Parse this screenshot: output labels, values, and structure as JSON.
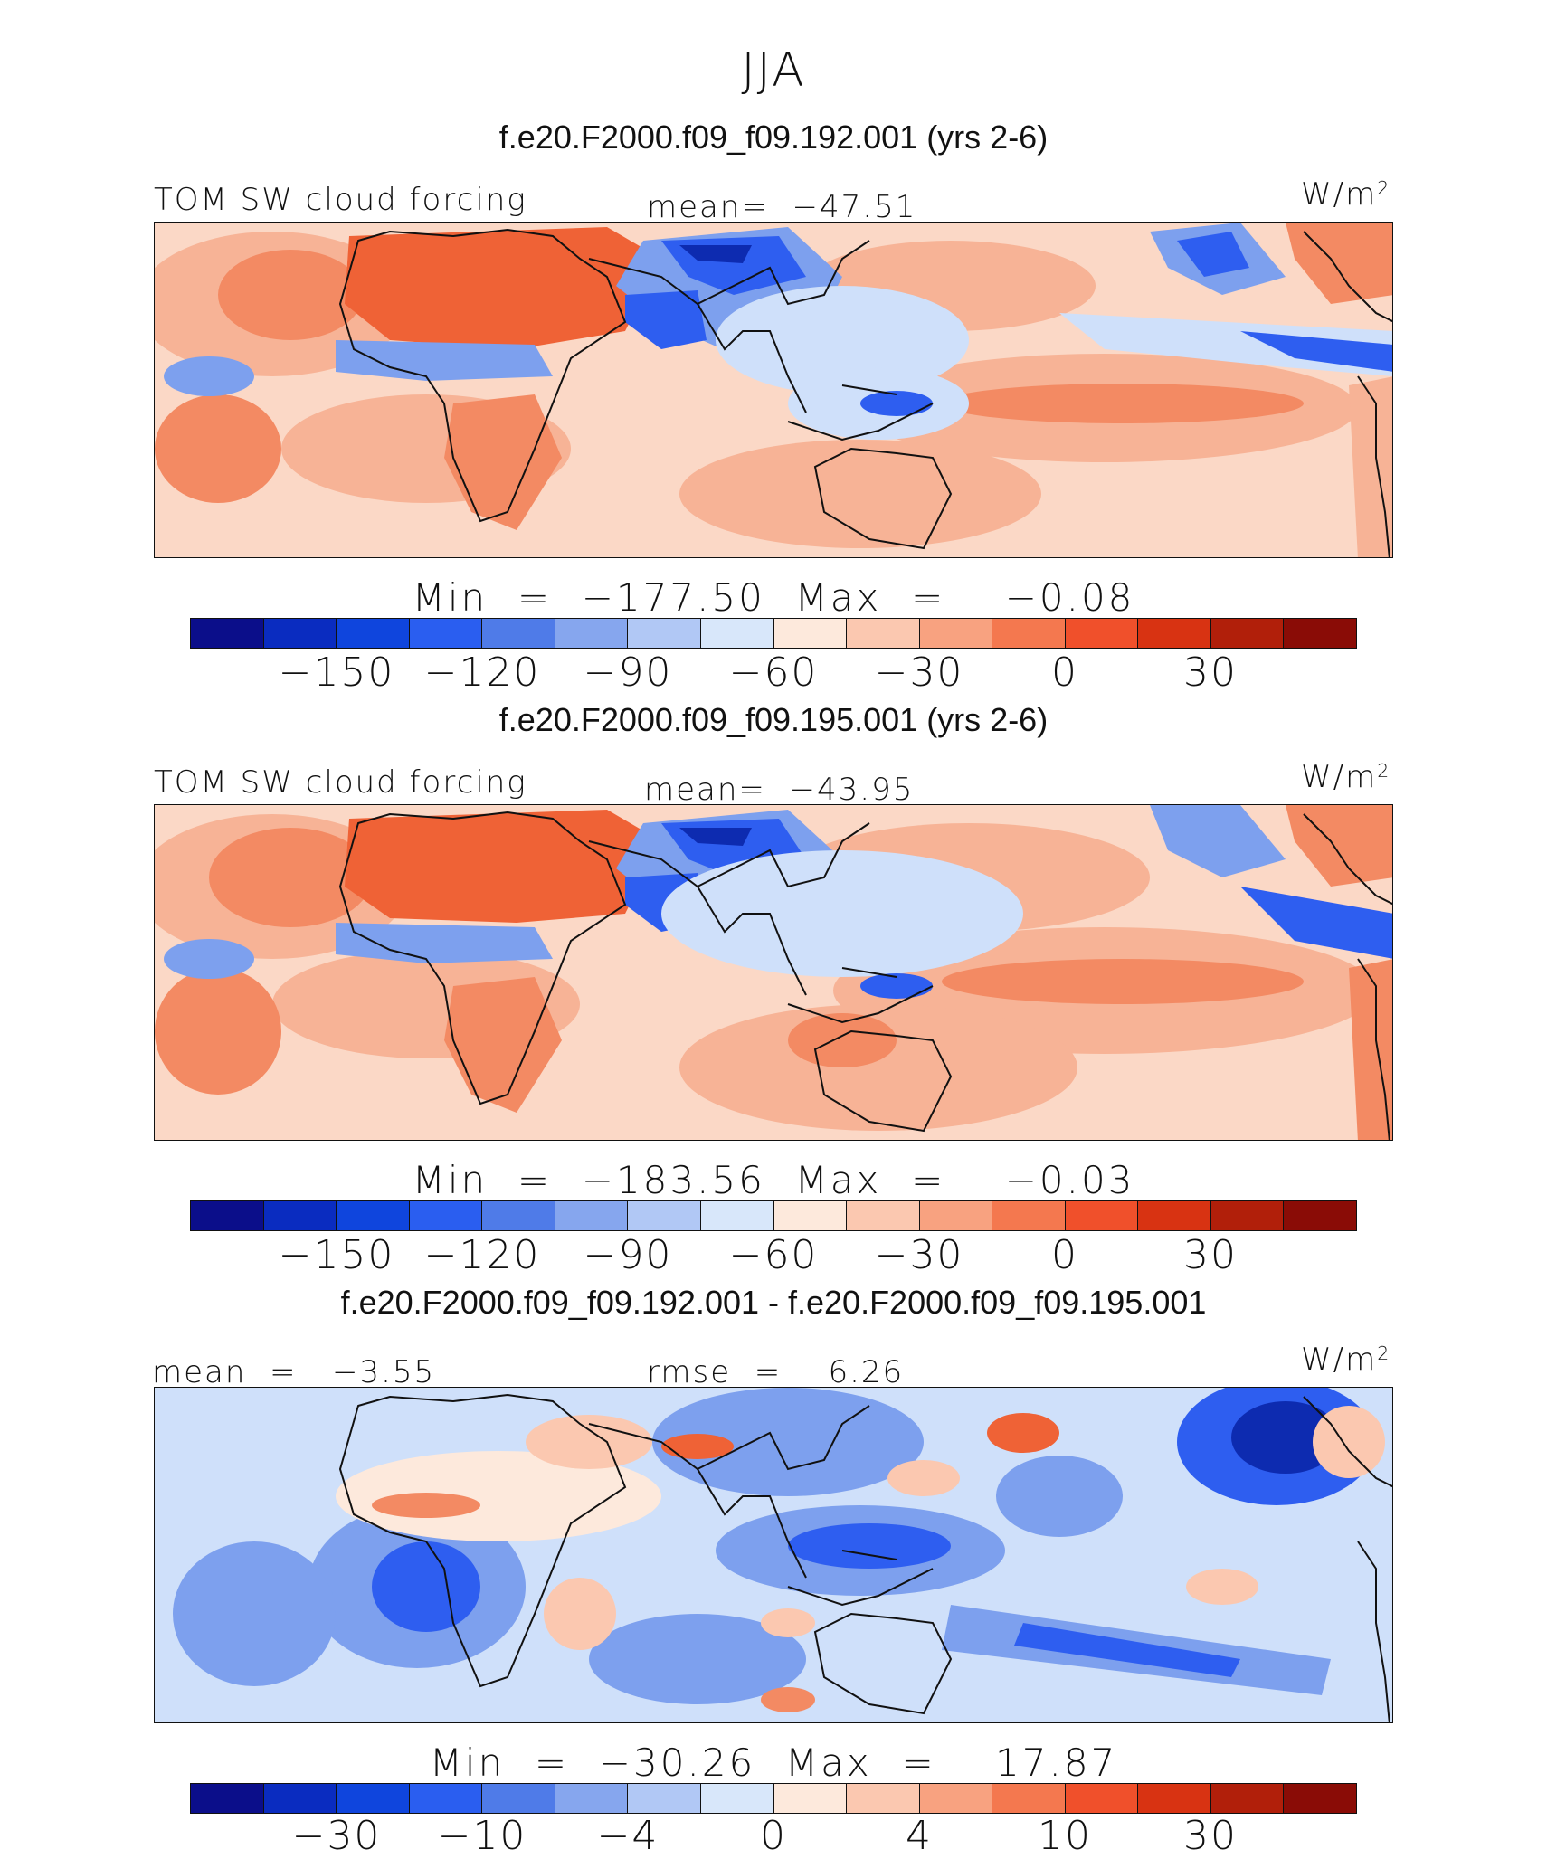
{
  "figure": {
    "title": "JJA",
    "units_base": "W/m",
    "units_exp": "2"
  },
  "panels": [
    {
      "case_title": "f.e20.F2000.f09_f09.192.001 (yrs 2-6)",
      "variable": "TOM SW cloud forcing",
      "stat1": "mean=  −47.51",
      "stat2": "",
      "minmax": "Min  =  −177.50  Max  =    −0.08",
      "ticks": [
        "−150",
        "−120",
        "−90",
        "−60",
        "−30",
        "0",
        "30"
      ]
    },
    {
      "case_title": "f.e20.F2000.f09_f09.195.001 (yrs 2-6)",
      "variable": "TOM SW cloud forcing",
      "stat1": "mean=  −43.95",
      "stat2": "",
      "minmax": "Min  =  −183.56  Max  =    −0.03",
      "ticks": [
        "−150",
        "−120",
        "−90",
        "−60",
        "−30",
        "0",
        "30"
      ]
    },
    {
      "case_title": "f.e20.F2000.f09_f09.192.001 - f.e20.F2000.f09_f09.195.001",
      "variable": "",
      "stat1": "mean  =   −3.55",
      "stat2": "rmse  =    6.26",
      "minmax": "Min  =  −30.26  Max  =    17.87",
      "ticks": [
        "−30",
        "−10",
        "−4",
        "0",
        "4",
        "10",
        "30"
      ]
    }
  ],
  "colorbar_colors": [
    "#0b0e8a",
    "#0a2cc0",
    "#0f45dd",
    "#2a5ef0",
    "#4f7be8",
    "#86a6ee",
    "#b1c8f5",
    "#d8e7fa",
    "#fde9dc",
    "#fbc8b0",
    "#f8a280",
    "#f4784f",
    "#f0502b",
    "#d83312",
    "#b11f0a",
    "#8a0c06"
  ],
  "map_palette": {
    "ocean_neutral": "#fbd8c6",
    "pos_light": "#f7b396",
    "pos_mid": "#f38a63",
    "pos_strong": "#ef6236",
    "neg_light": "#cfe0fa",
    "neg_mid": "#7da0ee",
    "neg_strong": "#2e5ef0",
    "neg_deep": "#0d2bb0",
    "coast": "#111111"
  }
}
